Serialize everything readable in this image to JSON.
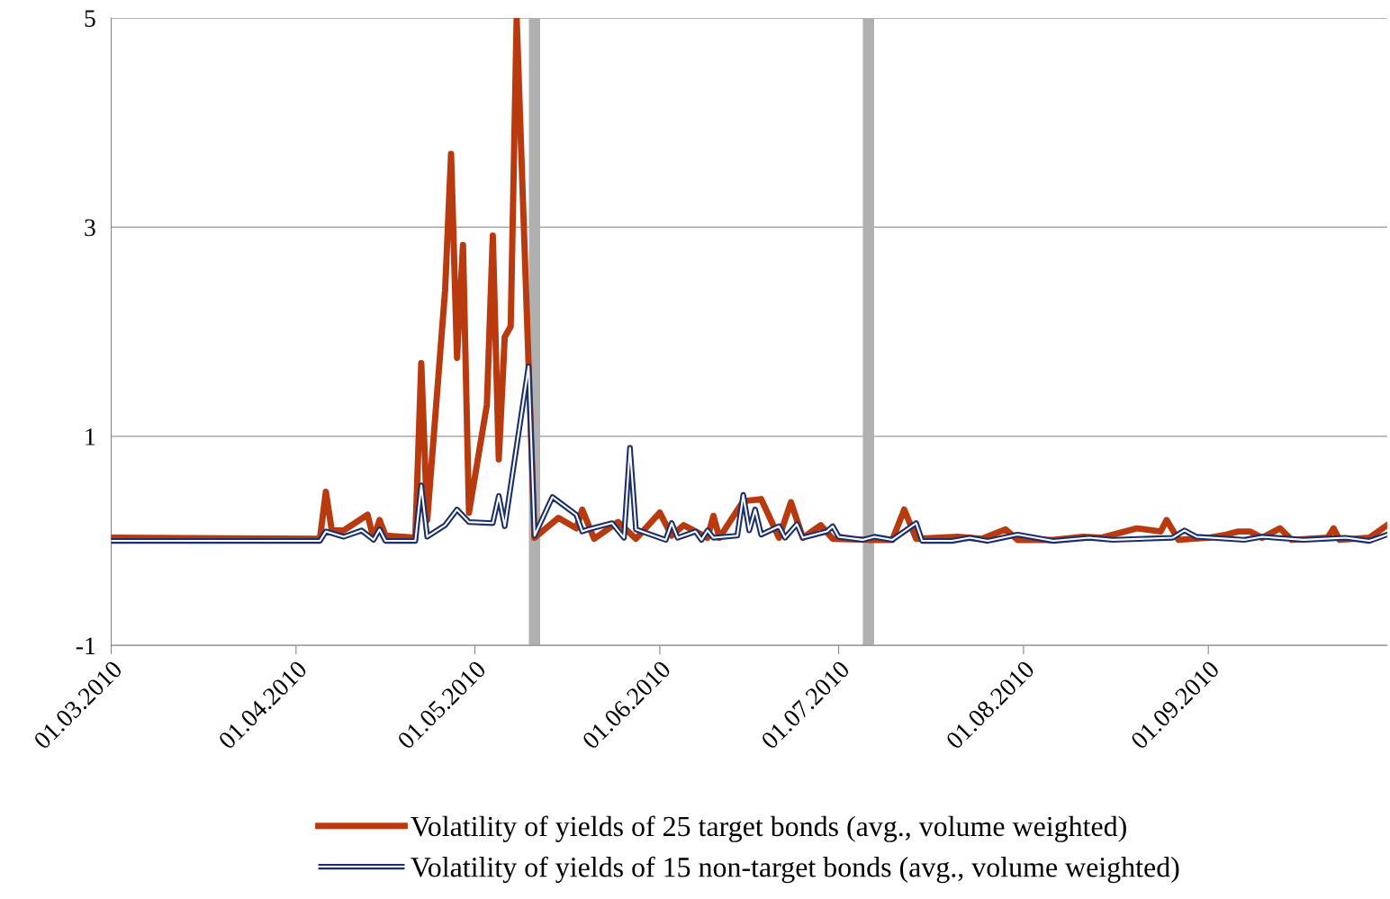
{
  "chart_data": {
    "type": "line",
    "xlim": [
      "2010-03-01",
      "2010-10-01"
    ],
    "xticks": [
      {
        "value": "2010-03-01",
        "label": "01.03.2010"
      },
      {
        "value": "2010-04-01",
        "label": "01.04.2010"
      },
      {
        "value": "2010-05-01",
        "label": "01.05.2010"
      },
      {
        "value": "2010-06-01",
        "label": "01.06.2010"
      },
      {
        "value": "2010-07-01",
        "label": "01.07.2010"
      },
      {
        "value": "2010-08-01",
        "label": "01.08.2010"
      },
      {
        "value": "2010-09-01",
        "label": "01.09.2010"
      }
    ],
    "ylim": [
      -1,
      5
    ],
    "yticks": [
      -1,
      1,
      3,
      5
    ],
    "grid": "y",
    "legend": "bottom",
    "marker": "none",
    "line_style": "solid",
    "ref_lines": [
      {
        "axis": "x",
        "value": "2010-05-11",
        "label": null,
        "color": "#b0b0b0"
      },
      {
        "axis": "x",
        "value": "2010-07-06",
        "label": null,
        "color": "#b0b0b0"
      }
    ],
    "series": [
      {
        "name": "Volatility of yields of 25 target bonds (avg., volume weighted)",
        "color": "#b83a0e",
        "x": [
          "2010-03-01",
          "2010-04-05",
          "2010-04-06",
          "2010-04-07",
          "2010-04-09",
          "2010-04-13",
          "2010-04-14",
          "2010-04-15",
          "2010-04-16",
          "2010-04-21",
          "2010-04-22",
          "2010-04-23",
          "2010-04-26",
          "2010-04-27",
          "2010-04-28",
          "2010-04-29",
          "2010-04-30",
          "2010-05-03",
          "2010-05-04",
          "2010-05-05",
          "2010-05-06",
          "2010-05-07",
          "2010-05-08",
          "2010-05-11",
          "2010-05-15",
          "2010-05-18",
          "2010-05-19",
          "2010-05-21",
          "2010-05-25",
          "2010-05-28",
          "2010-06-01",
          "2010-06-03",
          "2010-06-05",
          "2010-06-09",
          "2010-06-10",
          "2010-06-11",
          "2010-06-15",
          "2010-06-18",
          "2010-06-21",
          "2010-06-23",
          "2010-06-25",
          "2010-06-28",
          "2010-06-30",
          "2010-07-06",
          "2010-07-10",
          "2010-07-12",
          "2010-07-14",
          "2010-07-21",
          "2010-07-25",
          "2010-07-29",
          "2010-07-31",
          "2010-08-06",
          "2010-08-11",
          "2010-08-14",
          "2010-08-20",
          "2010-08-24",
          "2010-08-25",
          "2010-08-27",
          "2010-09-01",
          "2010-09-04",
          "2010-09-06",
          "2010-09-08",
          "2010-09-10",
          "2010-09-13",
          "2010-09-15",
          "2010-09-21",
          "2010-09-22",
          "2010-09-23",
          "2010-09-28",
          "2010-10-01"
        ],
        "values": [
          0.03,
          0.02,
          0.47,
          0.1,
          0.1,
          0.25,
          0.02,
          0.2,
          0.05,
          0.03,
          1.7,
          0.2,
          2.4,
          3.7,
          1.75,
          2.83,
          0.27,
          1.3,
          2.92,
          0.78,
          1.95,
          2.05,
          5,
          0.03,
          0.22,
          0.12,
          0.3,
          0.02,
          0.18,
          0.02,
          0.27,
          0.05,
          0.15,
          0.03,
          0.24,
          0.03,
          0.38,
          0.4,
          0.03,
          0.37,
          0.03,
          0.15,
          0.02,
          0.01,
          0.01,
          0.3,
          0.02,
          0.04,
          0.02,
          0.11,
          0.01,
          0.01,
          0.04,
          0.03,
          0.12,
          0.09,
          0.2,
          0.01,
          0.03,
          0.06,
          0.09,
          0.09,
          0.03,
          0.12,
          0.01,
          0.03,
          0.12,
          0.01,
          0.03,
          0.15
        ]
      },
      {
        "name": "Volatility of yields of 15 non-target bonds (avg., volume weighted)",
        "color": "#1a2f6b",
        "x": [
          "2010-03-01",
          "2010-04-05",
          "2010-04-06",
          "2010-04-09",
          "2010-04-12",
          "2010-04-14",
          "2010-04-15",
          "2010-04-16",
          "2010-04-21",
          "2010-04-22",
          "2010-04-23",
          "2010-04-26",
          "2010-04-28",
          "2010-04-30",
          "2010-05-04",
          "2010-05-05",
          "2010-05-06",
          "2010-05-10",
          "2010-05-11",
          "2010-05-14",
          "2010-05-18",
          "2010-05-19",
          "2010-05-20",
          "2010-05-24",
          "2010-05-26",
          "2010-05-27",
          "2010-05-28",
          "2010-06-02",
          "2010-06-03",
          "2010-06-04",
          "2010-06-07",
          "2010-06-08",
          "2010-06-09",
          "2010-06-10",
          "2010-06-14",
          "2010-06-15",
          "2010-06-16",
          "2010-06-17",
          "2010-06-18",
          "2010-06-21",
          "2010-06-22",
          "2010-06-24",
          "2010-06-25",
          "2010-06-29",
          "2010-06-30",
          "2010-07-01",
          "2010-07-05",
          "2010-07-07",
          "2010-07-10",
          "2010-07-14",
          "2010-07-15",
          "2010-07-20",
          "2010-07-23",
          "2010-07-26",
          "2010-07-31",
          "2010-08-06",
          "2010-08-12",
          "2010-08-16",
          "2010-08-26",
          "2010-08-28",
          "2010-08-30",
          "2010-09-07",
          "2010-09-10",
          "2010-09-17",
          "2010-09-24",
          "2010-09-28",
          "2010-10-01"
        ],
        "values": [
          0.0,
          0.0,
          0.09,
          0.04,
          0.1,
          0.01,
          0.11,
          0.0,
          0.0,
          0.53,
          0.04,
          0.15,
          0.3,
          0.18,
          0.17,
          0.43,
          0.14,
          1.67,
          0.05,
          0.42,
          0.25,
          0.09,
          0.11,
          0.17,
          0.03,
          0.89,
          0.11,
          0.01,
          0.17,
          0.03,
          0.09,
          0.01,
          0.1,
          0.03,
          0.05,
          0.44,
          0.1,
          0.3,
          0.06,
          0.14,
          0.03,
          0.16,
          0.03,
          0.09,
          0.14,
          0.04,
          0.01,
          0.04,
          0.01,
          0.17,
          0.0,
          0.0,
          0.03,
          0.0,
          0.06,
          0.0,
          0.03,
          0.01,
          0.03,
          0.1,
          0.04,
          0.01,
          0.04,
          0.01,
          0.03,
          0.0,
          0.06
        ]
      }
    ]
  }
}
